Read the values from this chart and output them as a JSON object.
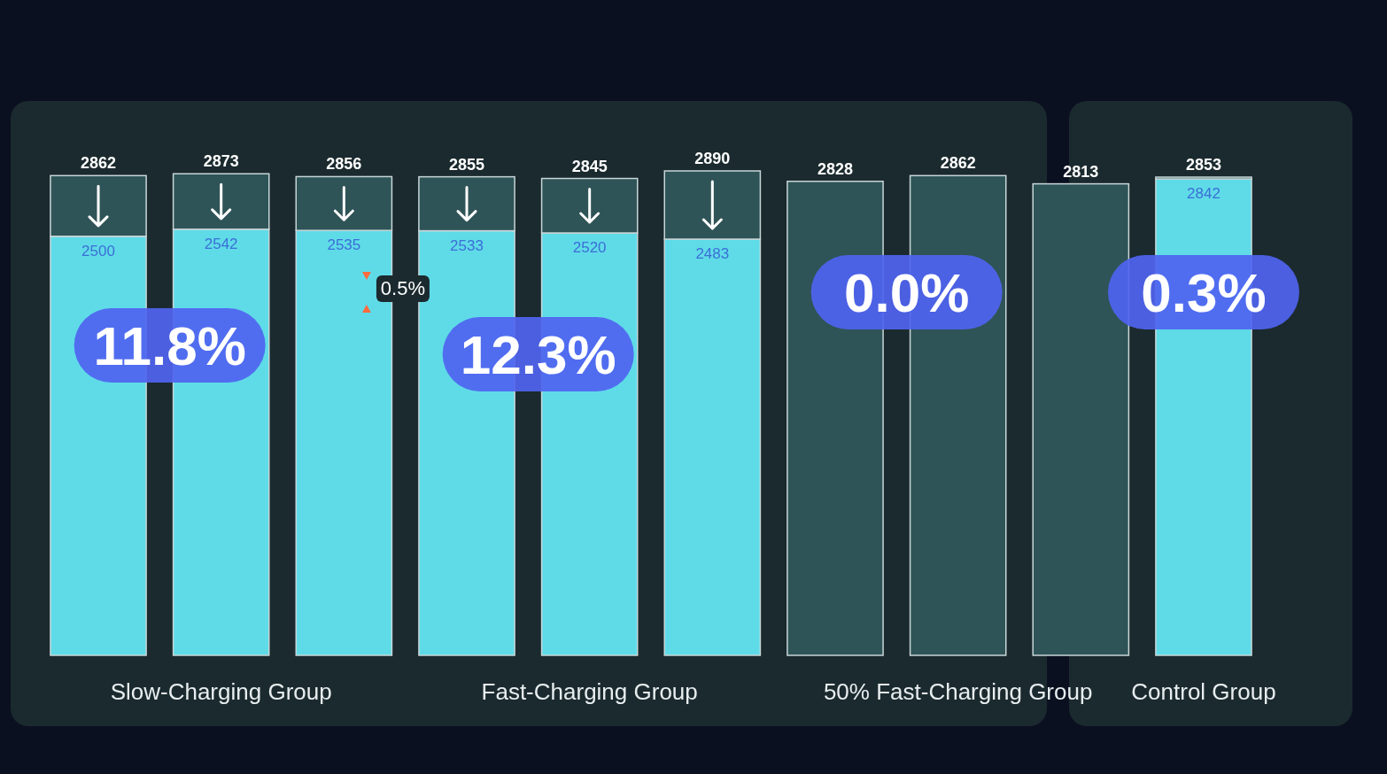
{
  "chart_data": {
    "type": "bar",
    "stacked": true,
    "categories": [
      null,
      "Slow-Charging Group",
      null,
      null,
      "Fast-Charging Group",
      null,
      null,
      "50% Fast-Charging Group",
      null,
      "Control Group"
    ],
    "series": [
      {
        "color": "#5fdbe8",
        "values": [
          2500,
          2542,
          2535,
          2533,
          2520,
          2483,
          null,
          null,
          null,
          2842
        ],
        "value_labels": [
          "2500",
          "2542",
          "2535",
          "2533",
          "2520",
          "2483",
          null,
          null,
          null,
          "2842"
        ]
      },
      {
        "color": "#2f5457",
        "values": [
          362,
          331,
          321,
          322,
          325,
          407,
          2828,
          2862,
          2813,
          11
        ]
      }
    ],
    "totals": [
      "2862",
      "2873",
      "2856",
      "2855",
      "2845",
      "2890",
      "2828",
      "2862",
      "2813",
      "2853"
    ],
    "annotations": [
      "11.8%",
      "12.3%",
      "0.0%",
      "0.3%",
      "0.5%"
    ]
  }
}
